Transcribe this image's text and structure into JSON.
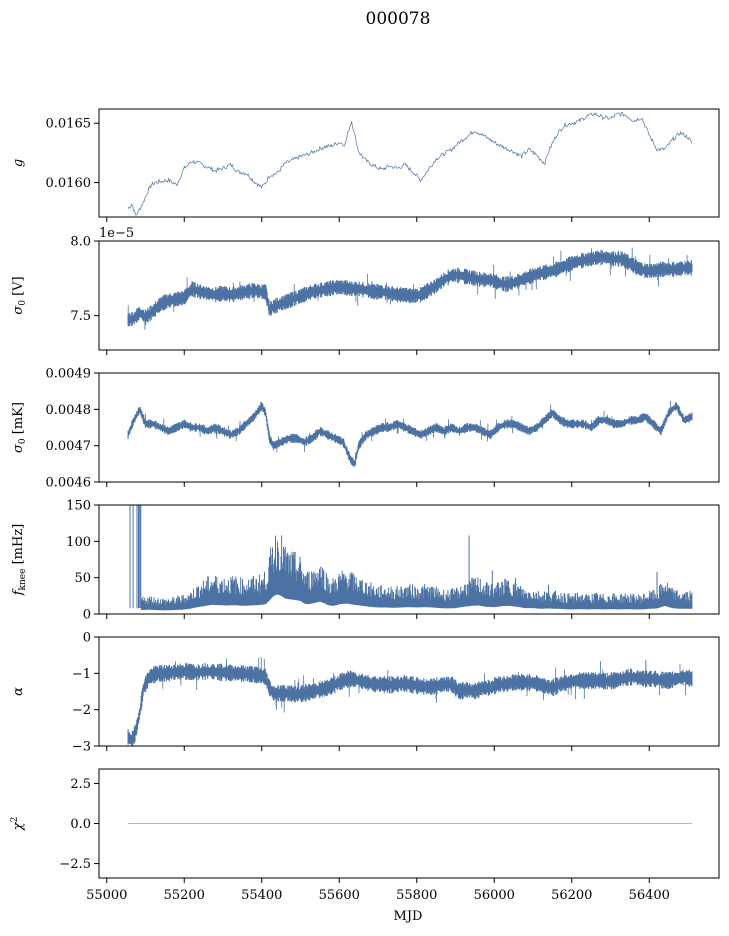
{
  "figure": {
    "title": "000078",
    "series_color": "#4c72a4",
    "line_color": "#4c72a4"
  },
  "chart_data": [
    {
      "type": "line",
      "id": "g",
      "ylabel": "g",
      "xlim": [
        54980,
        56580
      ],
      "ylim": [
        0.01571,
        0.01662
      ],
      "yticks": [
        0.016,
        0.0165
      ],
      "ytick_labels": [
        "0.0160",
        "0.0165"
      ],
      "xticks": [
        55000,
        55200,
        55400,
        55600,
        55800,
        56000,
        56200,
        56400
      ],
      "show_xtick_labels": false,
      "style": "thin",
      "series": [
        {
          "x": [
            55055,
            55065,
            55075,
            55085,
            55095,
            55105,
            55115,
            55125,
            55140,
            55160,
            55180,
            55200,
            55220,
            55240,
            55260,
            55280,
            55300,
            55320,
            55340,
            55360,
            55380,
            55400,
            55410,
            55420,
            55440,
            55460,
            55480,
            55500,
            55520,
            55540,
            55560,
            55580,
            55600,
            55615,
            55625,
            55632,
            55640,
            55650,
            55670,
            55690,
            55710,
            55730,
            55750,
            55770,
            55790,
            55810,
            55830,
            55850,
            55870,
            55890,
            55910,
            55930,
            55950,
            55970,
            55990,
            56010,
            56030,
            56050,
            56070,
            56090,
            56110,
            56130,
            56140,
            56160,
            56180,
            56200,
            56220,
            56240,
            56260,
            56280,
            56300,
            56320,
            56340,
            56360,
            56380,
            56400,
            56420,
            56440,
            56460,
            56480,
            56500,
            56510
          ],
          "y": [
            0.01578,
            0.01582,
            0.01572,
            0.01578,
            0.01584,
            0.01592,
            0.01598,
            0.016,
            0.01601,
            0.01602,
            0.01598,
            0.01612,
            0.01618,
            0.01616,
            0.01613,
            0.0161,
            0.01612,
            0.01615,
            0.01609,
            0.01608,
            0.01601,
            0.01596,
            0.016,
            0.01606,
            0.01608,
            0.01616,
            0.01619,
            0.01622,
            0.01624,
            0.01627,
            0.0163,
            0.01631,
            0.01634,
            0.01632,
            0.01645,
            0.01652,
            0.0164,
            0.01626,
            0.01618,
            0.01614,
            0.01611,
            0.01614,
            0.01612,
            0.01615,
            0.01609,
            0.01602,
            0.01611,
            0.0162,
            0.01624,
            0.01628,
            0.01634,
            0.01639,
            0.01644,
            0.0164,
            0.01636,
            0.01632,
            0.01629,
            0.01626,
            0.01622,
            0.01628,
            0.01623,
            0.01616,
            0.01626,
            0.0164,
            0.01648,
            0.0165,
            0.01652,
            0.01656,
            0.01658,
            0.01655,
            0.01654,
            0.01658,
            0.01657,
            0.01652,
            0.01655,
            0.0164,
            0.01628,
            0.01628,
            0.01636,
            0.01642,
            0.01638,
            0.01633
          ]
        }
      ]
    },
    {
      "type": "line",
      "id": "sigma0_V",
      "ylabel": "σ₀ [V]",
      "offset_text": "1e−5",
      "xlim": [
        54980,
        56580
      ],
      "ylim": [
        7.27,
        8.0
      ],
      "yticks": [
        7.5,
        8.0
      ],
      "ytick_labels": [
        "7.5",
        "8.0"
      ],
      "xticks": [
        55000,
        55200,
        55400,
        55600,
        55800,
        56000,
        56200,
        56400
      ],
      "show_xtick_labels": false,
      "style": "band",
      "band_halfwidth": 0.035,
      "series": [
        {
          "x": [
            55055,
            55070,
            55085,
            55100,
            55120,
            55140,
            55160,
            55180,
            55200,
            55220,
            55240,
            55260,
            55280,
            55300,
            55320,
            55340,
            55360,
            55380,
            55400,
            55410,
            55420,
            55430,
            55450,
            55470,
            55490,
            55510,
            55530,
            55550,
            55570,
            55590,
            55610,
            55630,
            55650,
            55670,
            55690,
            55710,
            55730,
            55750,
            55770,
            55790,
            55810,
            55830,
            55850,
            55870,
            55890,
            55910,
            55930,
            55950,
            55970,
            55990,
            56010,
            56030,
            56050,
            56070,
            56090,
            56110,
            56130,
            56150,
            56170,
            56190,
            56210,
            56230,
            56250,
            56270,
            56290,
            56310,
            56330,
            56350,
            56370,
            56390,
            56410,
            56430,
            56450,
            56470,
            56490,
            56510
          ],
          "y": [
            7.47,
            7.48,
            7.52,
            7.49,
            7.53,
            7.58,
            7.6,
            7.61,
            7.62,
            7.68,
            7.66,
            7.65,
            7.64,
            7.65,
            7.64,
            7.65,
            7.66,
            7.67,
            7.66,
            7.66,
            7.54,
            7.56,
            7.58,
            7.6,
            7.62,
            7.64,
            7.66,
            7.67,
            7.68,
            7.69,
            7.69,
            7.68,
            7.68,
            7.67,
            7.66,
            7.66,
            7.65,
            7.64,
            7.64,
            7.63,
            7.64,
            7.67,
            7.7,
            7.74,
            7.77,
            7.77,
            7.76,
            7.75,
            7.74,
            7.74,
            7.72,
            7.71,
            7.72,
            7.74,
            7.76,
            7.78,
            7.79,
            7.8,
            7.82,
            7.84,
            7.86,
            7.87,
            7.88,
            7.89,
            7.89,
            7.88,
            7.88,
            7.85,
            7.82,
            7.8,
            7.8,
            7.81,
            7.81,
            7.81,
            7.82,
            7.82
          ]
        }
      ]
    },
    {
      "type": "line",
      "id": "sigma0_mK",
      "ylabel": "σ₀ [mK]",
      "xlim": [
        54980,
        56580
      ],
      "ylim": [
        0.0046,
        0.0049
      ],
      "yticks": [
        0.0046,
        0.0047,
        0.0048,
        0.0049
      ],
      "ytick_labels": [
        "0.0046",
        "0.0047",
        "0.0048",
        "0.0049"
      ],
      "xticks": [
        55000,
        55200,
        55400,
        55600,
        55800,
        56000,
        56200,
        56400
      ],
      "show_xtick_labels": false,
      "style": "band",
      "band_halfwidth": 8.5e-06,
      "series": [
        {
          "x": [
            55055,
            55070,
            55085,
            55100,
            55120,
            55140,
            55160,
            55180,
            55200,
            55220,
            55240,
            55260,
            55280,
            55300,
            55320,
            55340,
            55360,
            55380,
            55400,
            55410,
            55420,
            55430,
            55450,
            55470,
            55490,
            55510,
            55530,
            55550,
            55570,
            55590,
            55610,
            55630,
            55640,
            55650,
            55670,
            55690,
            55710,
            55730,
            55750,
            55770,
            55790,
            55810,
            55830,
            55850,
            55870,
            55890,
            55910,
            55930,
            55950,
            55970,
            55990,
            56010,
            56030,
            56050,
            56070,
            56090,
            56110,
            56130,
            56150,
            56170,
            56190,
            56210,
            56230,
            56250,
            56270,
            56290,
            56310,
            56330,
            56350,
            56370,
            56390,
            56410,
            56430,
            56450,
            56470,
            56490,
            56510
          ],
          "y": [
            0.00473,
            0.00477,
            0.0048,
            0.00476,
            0.00476,
            0.00475,
            0.00474,
            0.00475,
            0.00476,
            0.00475,
            0.00475,
            0.00474,
            0.00475,
            0.00474,
            0.00473,
            0.00474,
            0.00476,
            0.00478,
            0.00481,
            0.00479,
            0.00472,
            0.0047,
            0.00471,
            0.00472,
            0.00472,
            0.00471,
            0.00472,
            0.00474,
            0.00473,
            0.00472,
            0.00471,
            0.00466,
            0.00465,
            0.0047,
            0.00473,
            0.00474,
            0.00475,
            0.00475,
            0.00476,
            0.00475,
            0.00474,
            0.00473,
            0.00474,
            0.00475,
            0.00474,
            0.00475,
            0.00474,
            0.00475,
            0.00475,
            0.00474,
            0.00473,
            0.00475,
            0.00476,
            0.00476,
            0.00475,
            0.00474,
            0.00475,
            0.00477,
            0.00479,
            0.00477,
            0.00476,
            0.00476,
            0.00476,
            0.00475,
            0.00477,
            0.00477,
            0.00476,
            0.00476,
            0.00477,
            0.00477,
            0.00478,
            0.00476,
            0.00474,
            0.00479,
            0.00481,
            0.00477,
            0.00478
          ]
        }
      ]
    },
    {
      "type": "line",
      "id": "fknee",
      "ylabel": "f_knee [mHz]",
      "xlim": [
        54980,
        56580
      ],
      "ylim": [
        0,
        150
      ],
      "yticks": [
        0,
        50,
        100,
        150
      ],
      "ytick_labels": [
        "0",
        "50",
        "100",
        "150"
      ],
      "xticks": [
        55000,
        55200,
        55400,
        55600,
        55800,
        56000,
        56200,
        56400
      ],
      "show_xtick_labels": false,
      "style": "spiky",
      "series": [
        {
          "x": [
            55090,
            55110,
            55130,
            55150,
            55170,
            55190,
            55210,
            55230,
            55250,
            55270,
            55290,
            55310,
            55330,
            55350,
            55370,
            55390,
            55410,
            55420,
            55430,
            55440,
            55450,
            55460,
            55470,
            55480,
            55490,
            55500,
            55510,
            55520,
            55530,
            55540,
            55550,
            55560,
            55570,
            55580,
            55590,
            55600,
            55620,
            55640,
            55660,
            55680,
            55700,
            55720,
            55740,
            55760,
            55780,
            55800,
            55820,
            55840,
            55860,
            55880,
            55900,
            55920,
            55940,
            55960,
            55980,
            56000,
            56020,
            56040,
            56060,
            56080,
            56100,
            56120,
            56140,
            56160,
            56180,
            56200,
            56220,
            56240,
            56260,
            56280,
            56300,
            56320,
            56340,
            56360,
            56380,
            56400,
            56420,
            56440,
            56460,
            56480,
            56500,
            56510
          ],
          "y": [
            12,
            13,
            12,
            11,
            12,
            13,
            15,
            20,
            24,
            28,
            27,
            26,
            27,
            25,
            26,
            27,
            30,
            42,
            55,
            60,
            56,
            48,
            45,
            44,
            42,
            40,
            32,
            30,
            32,
            35,
            38,
            34,
            28,
            25,
            26,
            30,
            32,
            28,
            25,
            22,
            20,
            20,
            19,
            20,
            21,
            20,
            21,
            20,
            18,
            17,
            18,
            22,
            25,
            26,
            22,
            21,
            24,
            25,
            22,
            18,
            18,
            16,
            17,
            16,
            15,
            14,
            15,
            14,
            15,
            14,
            15,
            14,
            15,
            14,
            14,
            16,
            17,
            25,
            18,
            16,
            16,
            16
          ]
        }
      ]
    },
    {
      "type": "line",
      "id": "alpha",
      "ylabel": "α",
      "xlim": [
        54980,
        56580
      ],
      "ylim": [
        -3,
        0
      ],
      "yticks": [
        -3,
        -2,
        -1,
        0
      ],
      "ytick_labels": [
        "−3",
        "−2",
        "−1",
        "0"
      ],
      "xticks": [
        55000,
        55200,
        55400,
        55600,
        55800,
        56000,
        56200,
        56400
      ],
      "show_xtick_labels": false,
      "style": "band",
      "band_halfwidth": 0.16,
      "series": [
        {
          "x": [
            55055,
            55065,
            55075,
            55085,
            55095,
            55110,
            55130,
            55150,
            55170,
            55190,
            55210,
            55230,
            55250,
            55270,
            55290,
            55310,
            55330,
            55350,
            55370,
            55390,
            55410,
            55420,
            55430,
            55450,
            55470,
            55490,
            55510,
            55530,
            55550,
            55570,
            55590,
            55610,
            55630,
            55650,
            55670,
            55690,
            55710,
            55730,
            55750,
            55770,
            55790,
            55810,
            55830,
            55850,
            55870,
            55890,
            55910,
            55930,
            55950,
            55970,
            55990,
            56010,
            56030,
            56050,
            56070,
            56090,
            56110,
            56130,
            56150,
            56170,
            56190,
            56210,
            56230,
            56250,
            56270,
            56290,
            56310,
            56330,
            56350,
            56370,
            56390,
            56410,
            56430,
            56450,
            56470,
            56490,
            56510
          ],
          "y": [
            -2.75,
            -2.85,
            -2.6,
            -2.1,
            -1.4,
            -1.1,
            -1.0,
            -1.0,
            -0.98,
            -0.95,
            -0.95,
            -0.98,
            -0.95,
            -0.95,
            -0.97,
            -0.98,
            -1.0,
            -1.0,
            -1.02,
            -1.05,
            -1.1,
            -1.4,
            -1.55,
            -1.55,
            -1.55,
            -1.58,
            -1.55,
            -1.5,
            -1.45,
            -1.4,
            -1.3,
            -1.2,
            -1.15,
            -1.2,
            -1.25,
            -1.3,
            -1.3,
            -1.32,
            -1.3,
            -1.28,
            -1.32,
            -1.35,
            -1.38,
            -1.35,
            -1.3,
            -1.3,
            -1.5,
            -1.45,
            -1.5,
            -1.4,
            -1.4,
            -1.3,
            -1.3,
            -1.25,
            -1.25,
            -1.25,
            -1.28,
            -1.35,
            -1.4,
            -1.3,
            -1.25,
            -1.2,
            -1.2,
            -1.2,
            -1.2,
            -1.22,
            -1.2,
            -1.15,
            -1.1,
            -1.12,
            -1.15,
            -1.15,
            -1.18,
            -1.2,
            -1.15,
            -1.1,
            -1.15
          ]
        }
      ]
    },
    {
      "type": "line",
      "id": "chi2",
      "ylabel": "χ²",
      "xlabel": "MJD",
      "xlim": [
        54980,
        56580
      ],
      "ylim": [
        -3.4,
        3.4
      ],
      "yticks": [
        -2.5,
        0.0,
        2.5
      ],
      "ytick_labels": [
        "−2.5",
        "0.0",
        "2.5"
      ],
      "xticks": [
        55000,
        55200,
        55400,
        55600,
        55800,
        56000,
        56200,
        56400
      ],
      "xtick_labels": [
        "55000",
        "55200",
        "55400",
        "55600",
        "55800",
        "56000",
        "56200",
        "56400"
      ],
      "show_xtick_labels": true,
      "style": "thin",
      "series": [
        {
          "x": [
            55055,
            56510
          ],
          "y": [
            0,
            0
          ]
        }
      ]
    }
  ]
}
